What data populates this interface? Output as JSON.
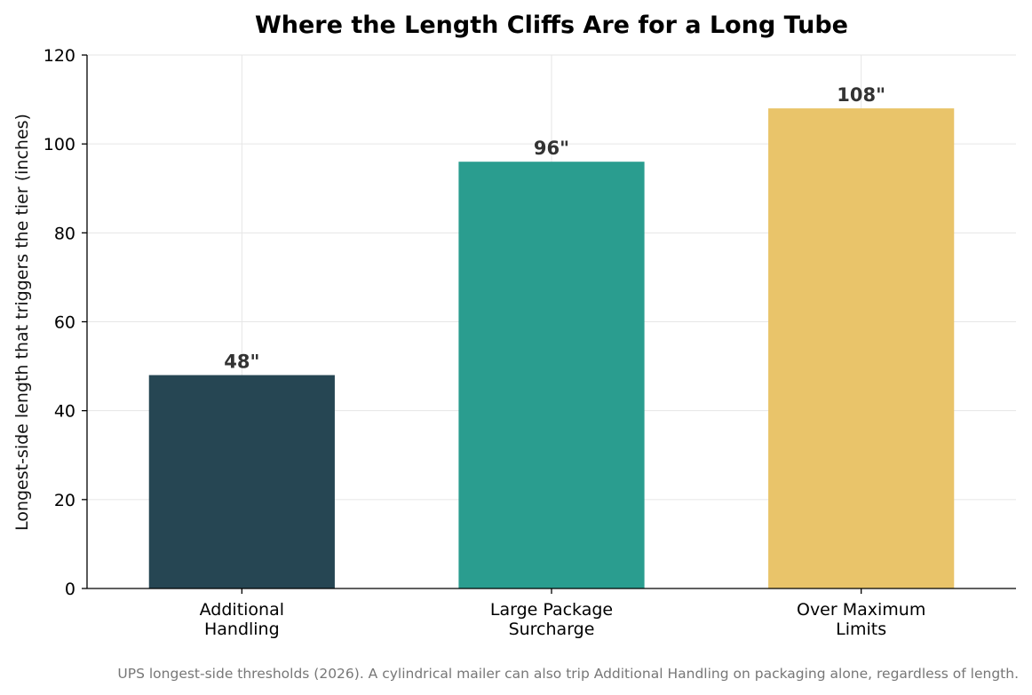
{
  "chart_data": {
    "type": "bar",
    "title": "Where the Length Cliffs Are for a Long Tube",
    "xlabel": "",
    "ylabel": "Longest-side length that triggers the tier (inches)",
    "ylim": [
      0,
      120
    ],
    "yticks": [
      0,
      20,
      40,
      60,
      80,
      100,
      120
    ],
    "grid": true,
    "categories": [
      [
        "Additional",
        "Handling"
      ],
      [
        "Large Package",
        "Surcharge"
      ],
      [
        "Over Maximum",
        "Limits"
      ]
    ],
    "values": [
      48,
      96,
      108
    ],
    "data_labels": [
      "48\"",
      "96\"",
      "108\""
    ],
    "colors": [
      "#264653",
      "#2a9d8f",
      "#e9c46a"
    ]
  },
  "footnote": "UPS longest-side thresholds (2026). A cylindrical mailer can also trip Additional Handling on packaging alone, regardless of length."
}
